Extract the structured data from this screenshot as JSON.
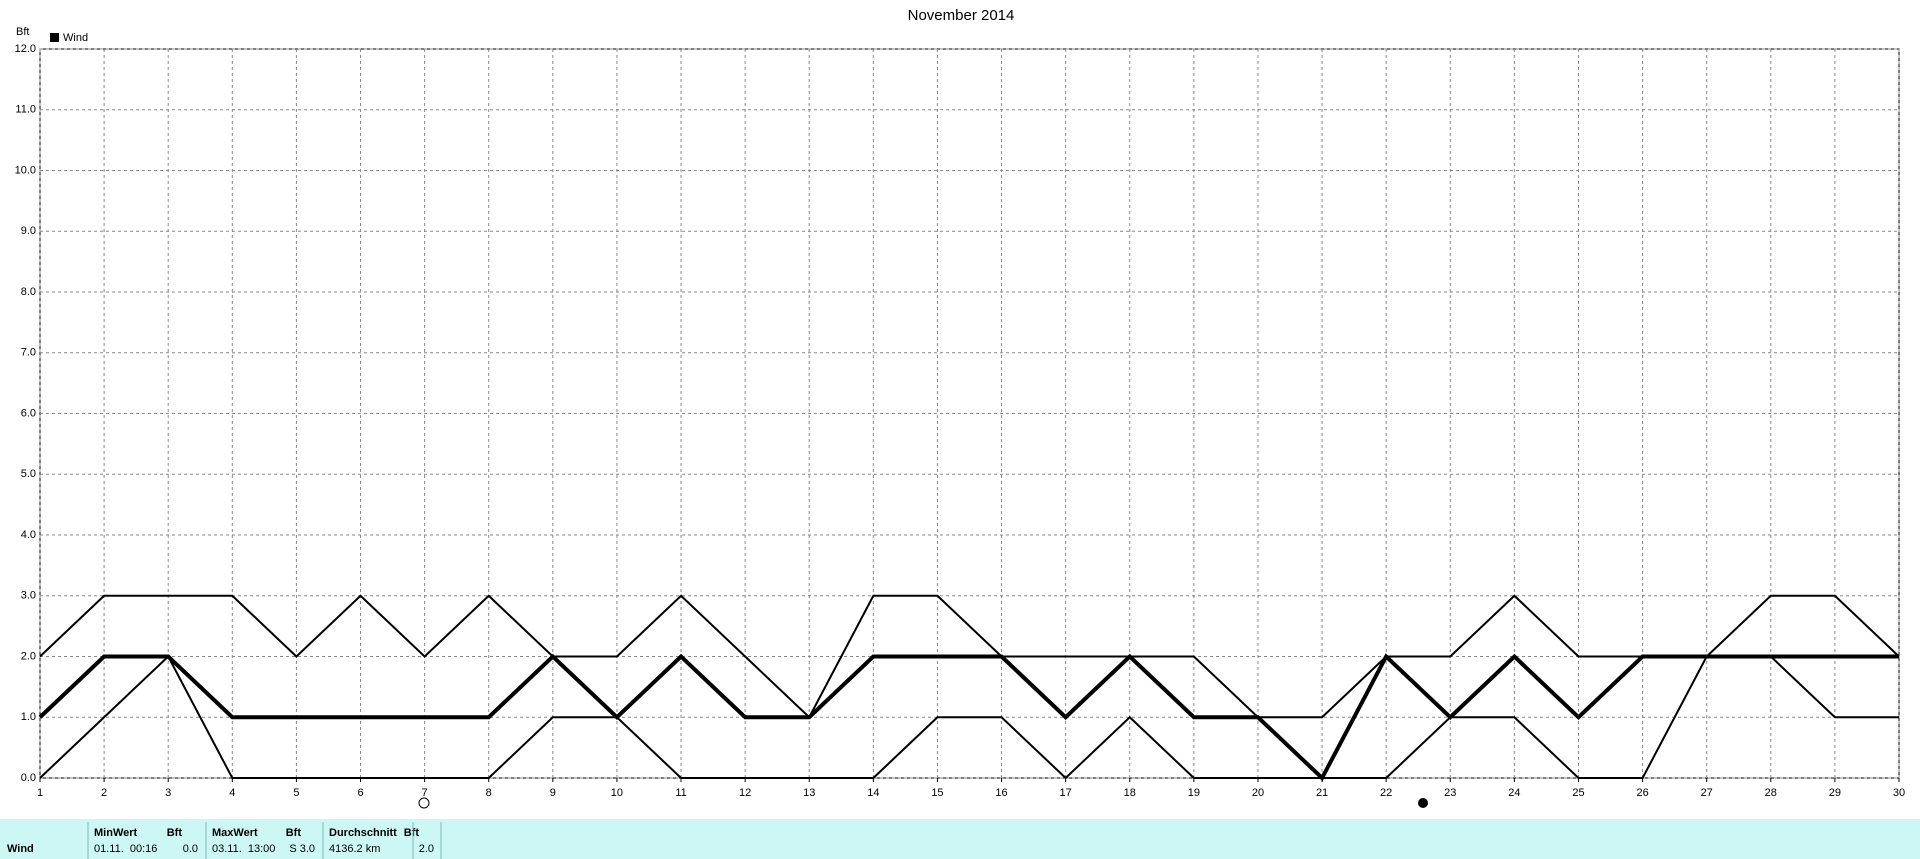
{
  "chart_data": {
    "type": "line",
    "title": "November 2014",
    "y_label": "Bft",
    "legend": "Wind",
    "legend_color": "#000000",
    "x": [
      1,
      2,
      3,
      4,
      5,
      6,
      7,
      8,
      9,
      10,
      11,
      12,
      13,
      14,
      15,
      16,
      17,
      18,
      19,
      20,
      21,
      22,
      23,
      24,
      25,
      26,
      27,
      28,
      29,
      30
    ],
    "series": [
      {
        "color": "#000000",
        "width": 2,
        "values": [
          2,
          3,
          3,
          3,
          2,
          3,
          2,
          3,
          2,
          2,
          3,
          2,
          1,
          3,
          3,
          2,
          2,
          2,
          2,
          1,
          1,
          2,
          2,
          3,
          2,
          2,
          2,
          3,
          3,
          2
        ]
      },
      {
        "color": "#000000",
        "width": 4,
        "values": [
          1,
          2,
          2,
          1,
          1,
          1,
          1,
          1,
          2,
          1,
          2,
          1,
          1,
          2,
          2,
          2,
          1,
          2,
          1,
          1,
          0,
          2,
          1,
          2,
          1,
          2,
          2,
          2,
          2,
          2
        ]
      },
      {
        "color": "#000000",
        "width": 2,
        "values": [
          0,
          1,
          2,
          0,
          0,
          0,
          0,
          0,
          1,
          1,
          0,
          0,
          0,
          0,
          1,
          1,
          0,
          1,
          0,
          0,
          0,
          0,
          1,
          1,
          0,
          0,
          2,
          2,
          1,
          1
        ]
      }
    ],
    "xlim": [
      1,
      30
    ],
    "xticks": [
      1,
      2,
      3,
      4,
      5,
      6,
      7,
      8,
      9,
      10,
      11,
      12,
      13,
      14,
      15,
      16,
      17,
      18,
      19,
      20,
      21,
      22,
      23,
      24,
      25,
      26,
      27,
      28,
      29,
      30
    ],
    "ylim": [
      0,
      12
    ],
    "yticks": [
      {
        "value": 0,
        "label": "0.0"
      },
      {
        "value": 1,
        "label": "1.0"
      },
      {
        "value": 2,
        "label": "2.0"
      },
      {
        "value": 3,
        "label": "3.0"
      },
      {
        "value": 4,
        "label": "4.0"
      },
      {
        "value": 5,
        "label": "5.0"
      },
      {
        "value": 6,
        "label": "6.0"
      },
      {
        "value": 7,
        "label": "7.0"
      },
      {
        "value": 8,
        "label": "8.0"
      },
      {
        "value": 9,
        "label": "9.0"
      },
      {
        "value": 10,
        "label": "10.0"
      },
      {
        "value": 11,
        "label": "11.0"
      },
      {
        "value": 12,
        "label": "12.0"
      }
    ],
    "grid": true
  },
  "table": {
    "header": [
      "MinWert",
      "Bft",
      "MaxWert",
      "Bft",
      "Durchschnitt",
      "Bft"
    ],
    "rows": [
      [
        "Wind",
        "01.11.  00:16",
        "0.0",
        "03.11.  13:00",
        "S 3.0",
        "4136.2 km",
        "2.0"
      ]
    ]
  }
}
